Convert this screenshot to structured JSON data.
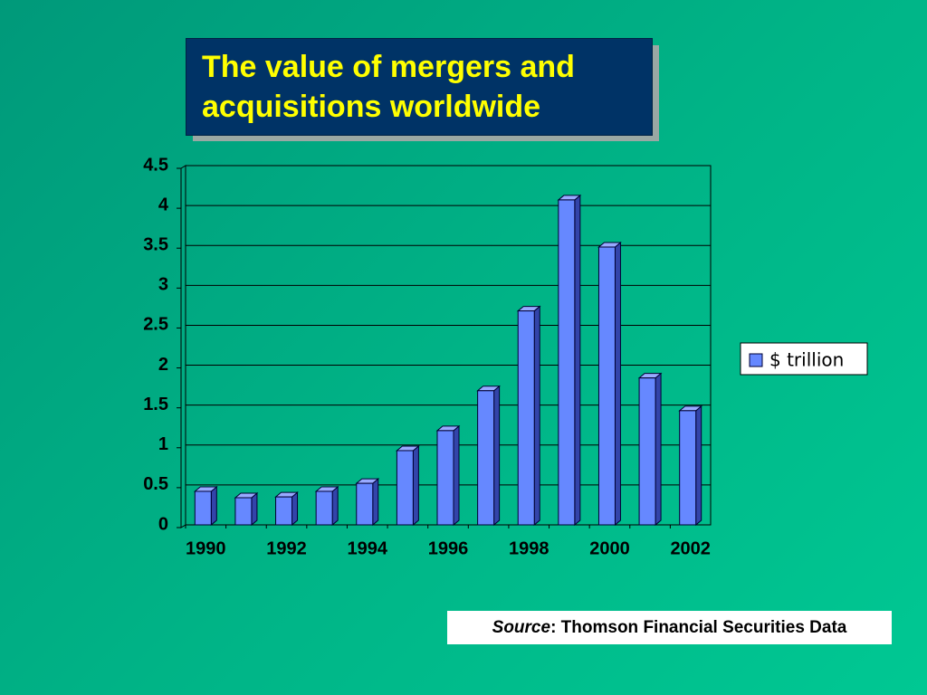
{
  "chart_data": {
    "type": "bar",
    "title": "The value of mergers and acquisitions worldwide",
    "categories": [
      "1990",
      null,
      "1992",
      null,
      "1994",
      null,
      "1996",
      null,
      "1998",
      null,
      "2000",
      null,
      "2002"
    ],
    "series": [
      {
        "name": "$ trillion",
        "color": "#6688ff",
        "values": [
          0.42,
          0.34,
          0.35,
          0.42,
          0.52,
          0.93,
          1.18,
          1.68,
          2.68,
          4.07,
          3.48,
          1.84,
          1.43
        ]
      }
    ],
    "ylim": [
      0,
      4.5
    ],
    "yticks": [
      0,
      0.5,
      1,
      1.5,
      2,
      2.5,
      3,
      3.5,
      4,
      4.5
    ],
    "grid": true,
    "legend": "right",
    "source_label": "Source",
    "source_text": ": Thomson Financial Securities Data"
  }
}
